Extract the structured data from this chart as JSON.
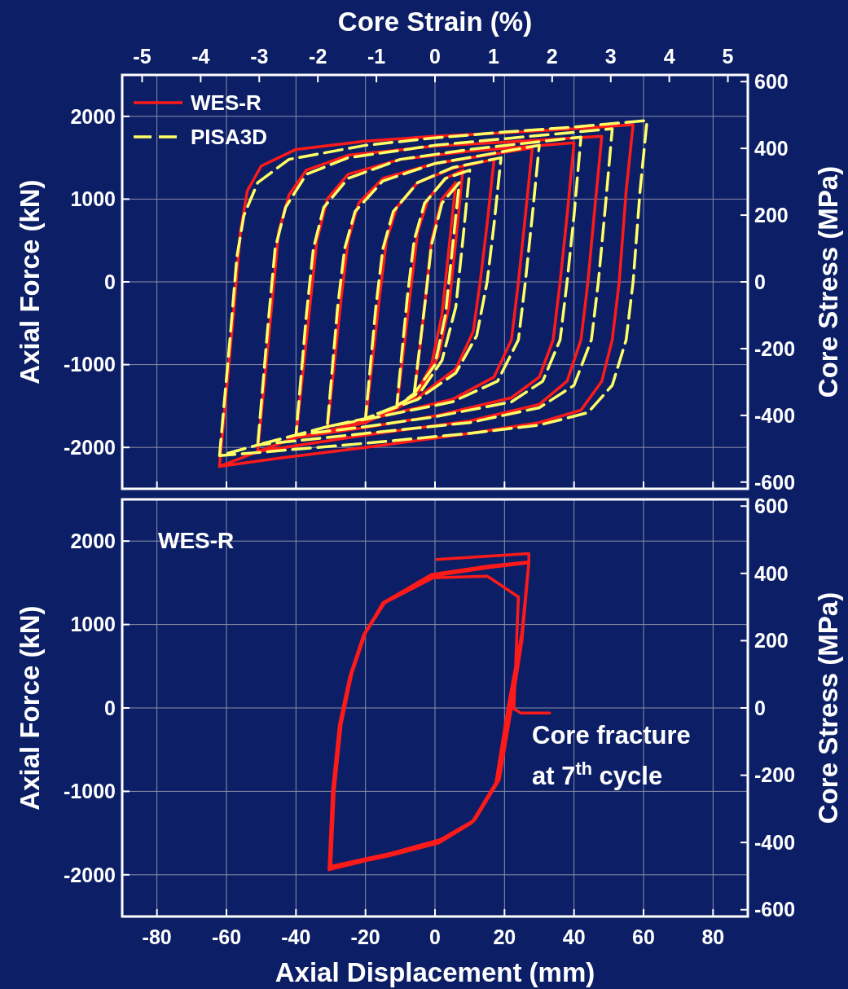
{
  "chart_data": [
    {
      "type": "line",
      "xlim": [
        -90,
        90
      ],
      "xticks": [
        -80,
        -60,
        -40,
        -20,
        0,
        20,
        40,
        60,
        80
      ],
      "ylim": [
        -2500,
        2500
      ],
      "yticks": [
        -2000,
        -1000,
        0,
        1000,
        2000
      ],
      "ylabel": "Axial Force (kN)",
      "y2label": "Core Stress (MPa)",
      "y2lim": [
        -620,
        620
      ],
      "y2ticks": [
        -600,
        -400,
        -200,
        0,
        200,
        400,
        600
      ],
      "x2label": "Core Strain (%)",
      "x2lim": [
        -5.34,
        5.34
      ],
      "x2ticks": [
        -5,
        -4,
        -3,
        -2,
        -1,
        0,
        1,
        2,
        3,
        4,
        5
      ],
      "grid": true,
      "legend": "top left",
      "tick_labels": "y",
      "series": [
        {
          "name": "WES-R",
          "color": "#ff1a1a",
          "line_style": "solid",
          "x": [
            -6,
            -3,
            -1,
            2,
            6,
            4,
            2,
            -1,
            -6,
            -11,
            -7,
            -5,
            -2,
            3,
            8,
            6,
            4,
            1,
            -4,
            -11,
            -20,
            -16,
            -14,
            -11,
            -5,
            5,
            17,
            15,
            13,
            11,
            6,
            -5,
            -20,
            -31,
            -27,
            -25,
            -22,
            -15,
            0,
            28,
            26,
            24,
            22,
            17,
            5,
            -15,
            -31,
            -40,
            -36,
            -34,
            -31,
            -25,
            -10,
            10,
            40,
            38,
            36,
            34,
            30,
            22,
            0,
            -20,
            -40,
            -51,
            -47,
            -45,
            -42,
            -37,
            -25,
            0,
            25,
            48,
            46,
            44,
            42,
            38,
            30,
            10,
            -20,
            -51,
            -62,
            -58,
            -56,
            -54,
            -50,
            -40,
            -20,
            0,
            20,
            40,
            57,
            55,
            53,
            51,
            48,
            42,
            30,
            10,
            -20,
            -45,
            -62
          ],
          "values": [
            -1400,
            -300,
            500,
            1000,
            1200,
            400,
            -400,
            -1000,
            -1400,
            -1530,
            -100,
            600,
            1000,
            1250,
            1350,
            500,
            -300,
            -900,
            -1300,
            -1530,
            -1700,
            -200,
            500,
            900,
            1200,
            1370,
            1480,
            700,
            0,
            -600,
            -1050,
            -1400,
            -1700,
            -1800,
            -200,
            500,
            950,
            1250,
            1430,
            1620,
            800,
            0,
            -700,
            -1150,
            -1420,
            -1620,
            -1800,
            -1880,
            -300,
            500,
            1000,
            1300,
            1480,
            1580,
            1680,
            800,
            0,
            -700,
            -1150,
            -1400,
            -1620,
            -1760,
            -1880,
            -2050,
            -300,
            600,
            1050,
            1350,
            1530,
            1640,
            1700,
            1760,
            900,
            0,
            -700,
            -1200,
            -1480,
            -1680,
            -1850,
            -2050,
            -2230,
            -400,
            600,
            1100,
            1400,
            1600,
            1700,
            1760,
            1800,
            1850,
            1900,
            1100,
            0,
            -700,
            -1200,
            -1550,
            -1700,
            -1830,
            -2000,
            -2130,
            -2230
          ]
        },
        {
          "name": "PISA3D",
          "color": "#ffff66",
          "line_style": "dashed",
          "x": [
            -6,
            -3,
            -1,
            2,
            7,
            5,
            3,
            0,
            -6,
            -11,
            -8,
            -6,
            -3,
            3,
            10,
            8,
            6,
            2,
            -4,
            -11,
            -20,
            -17,
            -15,
            -12,
            -5,
            5,
            19,
            17,
            15,
            12,
            6,
            -5,
            -20,
            -31,
            -28,
            -26,
            -23,
            -15,
            0,
            30,
            28,
            26,
            24,
            18,
            5,
            -15,
            -31,
            -40,
            -37,
            -35,
            -32,
            -25,
            -10,
            10,
            42,
            40,
            38,
            36,
            31,
            22,
            0,
            -20,
            -40,
            -51,
            -48,
            -46,
            -43,
            -37,
            -25,
            0,
            25,
            51,
            49,
            47,
            45,
            40,
            30,
            10,
            -20,
            -51,
            -62,
            -59,
            -57,
            -55,
            -51,
            -42,
            -20,
            0,
            20,
            40,
            61,
            59,
            57,
            55,
            51,
            44,
            30,
            10,
            -20,
            -45,
            -62
          ],
          "values": [
            -1350,
            -300,
            450,
            950,
            1200,
            400,
            -400,
            -1000,
            -1350,
            -1500,
            -200,
            500,
            950,
            1250,
            1350,
            500,
            -300,
            -950,
            -1320,
            -1500,
            -1650,
            -300,
            400,
            850,
            1200,
            1380,
            1500,
            700,
            0,
            -650,
            -1100,
            -1420,
            -1650,
            -1750,
            -300,
            400,
            850,
            1220,
            1430,
            1650,
            800,
            0,
            -700,
            -1200,
            -1450,
            -1620,
            -1750,
            -1850,
            -400,
            400,
            900,
            1250,
            1480,
            1600,
            1750,
            800,
            0,
            -700,
            -1200,
            -1450,
            -1630,
            -1750,
            -1850,
            -1970,
            -500,
            400,
            900,
            1300,
            1500,
            1650,
            1750,
            1850,
            900,
            0,
            -700,
            -1250,
            -1520,
            -1700,
            -1830,
            -1970,
            -2100,
            -700,
            300,
            800,
            1200,
            1480,
            1650,
            1740,
            1810,
            1870,
            1950,
            1100,
            0,
            -700,
            -1250,
            -1580,
            -1730,
            -1830,
            -1950,
            -2040,
            -2100
          ]
        }
      ]
    },
    {
      "type": "line",
      "title": "WES-R",
      "xlabel": "Axial Displacement (mm)",
      "ylabel": "Axial Force (kN)",
      "y2label": "Core Stress (MPa)",
      "xlim": [
        -90,
        90
      ],
      "xticks": [
        -80,
        -60,
        -40,
        -20,
        0,
        20,
        40,
        60,
        80
      ],
      "ylim": [
        -2500,
        2500
      ],
      "yticks": [
        -2000,
        -1000,
        0,
        1000,
        2000
      ],
      "y2lim": [
        -620,
        620
      ],
      "y2ticks": [
        -600,
        -400,
        -200,
        0,
        200,
        400,
        600
      ],
      "grid": true,
      "annotations": [
        "Core fracture at 7$^{th}$ cycle"
      ],
      "series": [
        {
          "color": "#ff1a1a",
          "line_style": "solid",
          "x": [
            0.5,
            27,
            27,
            25,
            21,
            17.5,
            10.5,
            1,
            -13,
            -30,
            -29,
            -27,
            -24,
            -20,
            -15,
            -1,
            15,
            27,
            25,
            21.5,
            18,
            11,
            1,
            -13,
            -30.5,
            -29.5,
            -27.5,
            -24.5,
            -20.5,
            -15,
            -1,
            15,
            27,
            25,
            22,
            18.5,
            11.5,
            1.5,
            -12.5,
            -30,
            -29,
            -27,
            -24,
            -20,
            -14.5,
            -0.5,
            15,
            16.5,
            24,
            22.7,
            24.6,
            33
          ],
          "values": [
            1780,
            1850,
            1750,
            900,
            0,
            -900,
            -1380,
            -1620,
            -1770,
            -1920,
            -1000,
            -200,
            400,
            900,
            1260,
            1600,
            1700,
            1750,
            850,
            0,
            -880,
            -1360,
            -1600,
            -1760,
            -1940,
            -1000,
            -200,
            380,
            880,
            1250,
            1580,
            1680,
            1740,
            800,
            0,
            -860,
            -1340,
            -1580,
            -1740,
            -1900,
            -1000,
            -200,
            400,
            900,
            1260,
            1560,
            1580,
            1540,
            1330,
            -10,
            -60,
            -60
          ]
        }
      ]
    }
  ]
}
